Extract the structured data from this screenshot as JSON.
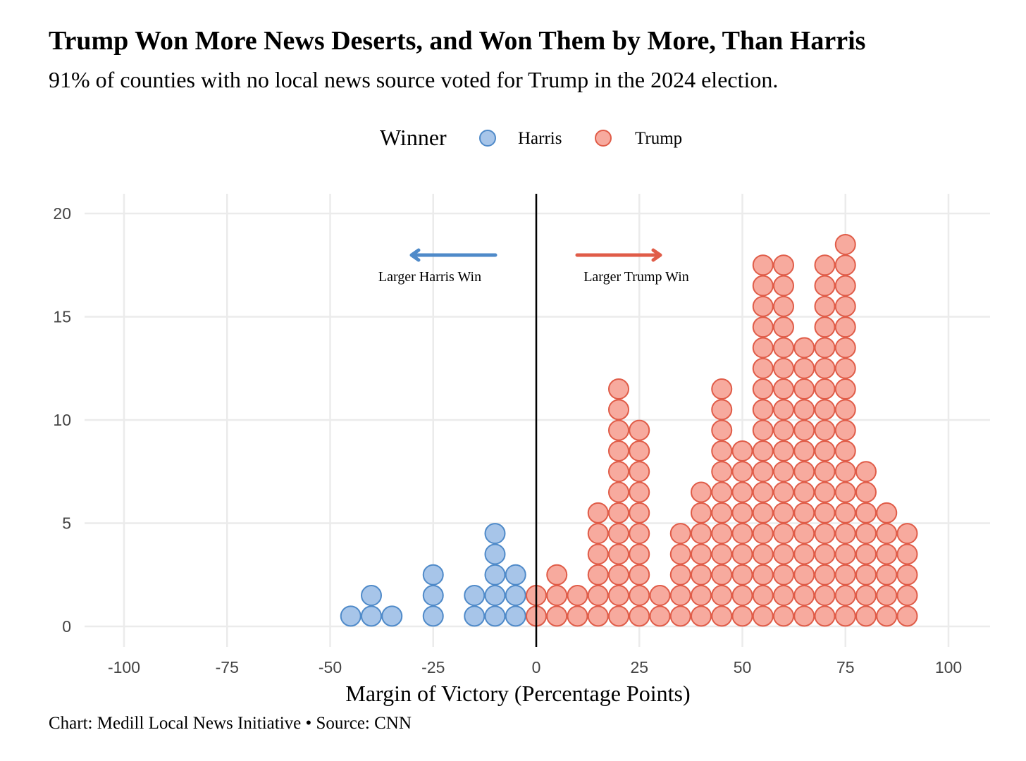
{
  "title": "Trump Won More News Deserts, and Won Them by More, Than Harris",
  "subtitle": "91% of counties with no local news source voted for Trump in the 2024 election.",
  "caption": "Chart: Medill Local News Initiative • Source: CNN",
  "colors": {
    "harris_fill": "#a7c5e9",
    "harris_stroke": "#4f8ac9",
    "trump_fill": "#f7aa9e",
    "trump_stroke": "#e05c48",
    "grid": "#ebebeb",
    "zero_line": "#000000"
  },
  "chart_data": {
    "type": "dotplot",
    "xlabel": "Margin of Victory (Percentage Points)",
    "ylabel": "",
    "xlim": [
      -100,
      100
    ],
    "ylim": [
      0,
      20
    ],
    "x_ticks": [
      "-100",
      "-75",
      "-50",
      "-25",
      "0",
      "25",
      "50",
      "75",
      "100"
    ],
    "y_ticks": [
      "0",
      "5",
      "10",
      "15",
      "20"
    ],
    "legend": {
      "title": "Winner",
      "position": "top",
      "entries": [
        "Harris",
        "Trump"
      ]
    },
    "annotations": {
      "harris_arrow_label": "Larger Harris Win",
      "trump_arrow_label": "Larger Trump Win"
    },
    "bin_width": 5,
    "series": [
      {
        "name": "Harris",
        "x": [
          -45,
          -40,
          -35,
          -25,
          -15,
          -10,
          -5,
          0
        ],
        "counts": [
          1,
          2,
          1,
          3,
          2,
          5,
          3,
          1
        ]
      },
      {
        "name": "Trump",
        "x": [
          0,
          5,
          10,
          15,
          20,
          25,
          30,
          35,
          40,
          45,
          50,
          55,
          60,
          65,
          70,
          75,
          80,
          85,
          90
        ],
        "counts": [
          2,
          3,
          2,
          6,
          12,
          10,
          2,
          5,
          7,
          12,
          9,
          18,
          18,
          14,
          18,
          19,
          8,
          6,
          5
        ]
      }
    ]
  }
}
